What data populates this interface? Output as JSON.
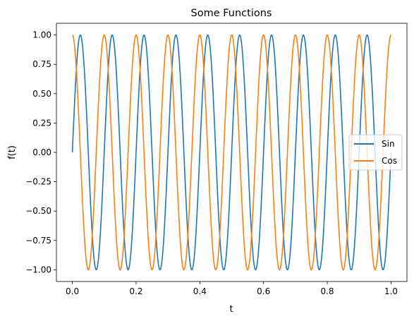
{
  "chart_data": {
    "type": "line",
    "title": "Some Functions",
    "xlabel": "t",
    "ylabel": "f(t)",
    "xlim": [
      -0.05,
      1.05
    ],
    "ylim": [
      -1.1,
      1.1
    ],
    "x_ticks": [
      0.0,
      0.2,
      0.4,
      0.6,
      0.8,
      1.0
    ],
    "x_tick_labels": [
      "0.0",
      "0.2",
      "0.4",
      "0.6",
      "0.8",
      "1.0"
    ],
    "y_ticks": [
      -1.0,
      -0.75,
      -0.5,
      -0.25,
      0.0,
      0.25,
      0.5,
      0.75,
      1.0
    ],
    "y_tick_labels": [
      "−1.00",
      "−0.75",
      "−0.50",
      "−0.25",
      "0.00",
      "0.25",
      "0.50",
      "0.75",
      "1.00"
    ],
    "grid": false,
    "legend_position": "center right",
    "functions": {
      "t_start": 0.0,
      "t_end": 1.0,
      "frequency_cycles": 10
    },
    "series": [
      {
        "name": "Sin",
        "function": "sin",
        "color": "#1f77b4"
      },
      {
        "name": "Cos",
        "function": "cos",
        "color": "#ff7f0e"
      }
    ]
  }
}
